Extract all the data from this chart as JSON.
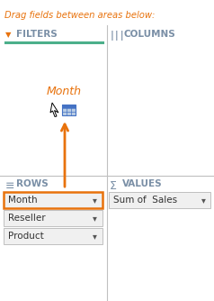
{
  "bg_color": "#ffffff",
  "border_color": "#c0c0c0",
  "orange": "#E8720C",
  "green_line": "#4CAF8A",
  "blue_gray": "#7a8fa6",
  "text_dark": "#333333",
  "header_text": "Drag fields between areas below:",
  "filters_label": "FILTERS",
  "columns_label": "COLUMNS",
  "rows_label": "ROWS",
  "values_label": "VALUES",
  "sigma": "Σ",
  "rows_items": [
    "Month",
    "Reseller",
    "Product"
  ],
  "values_items": [
    "Sum of  Sales"
  ]
}
